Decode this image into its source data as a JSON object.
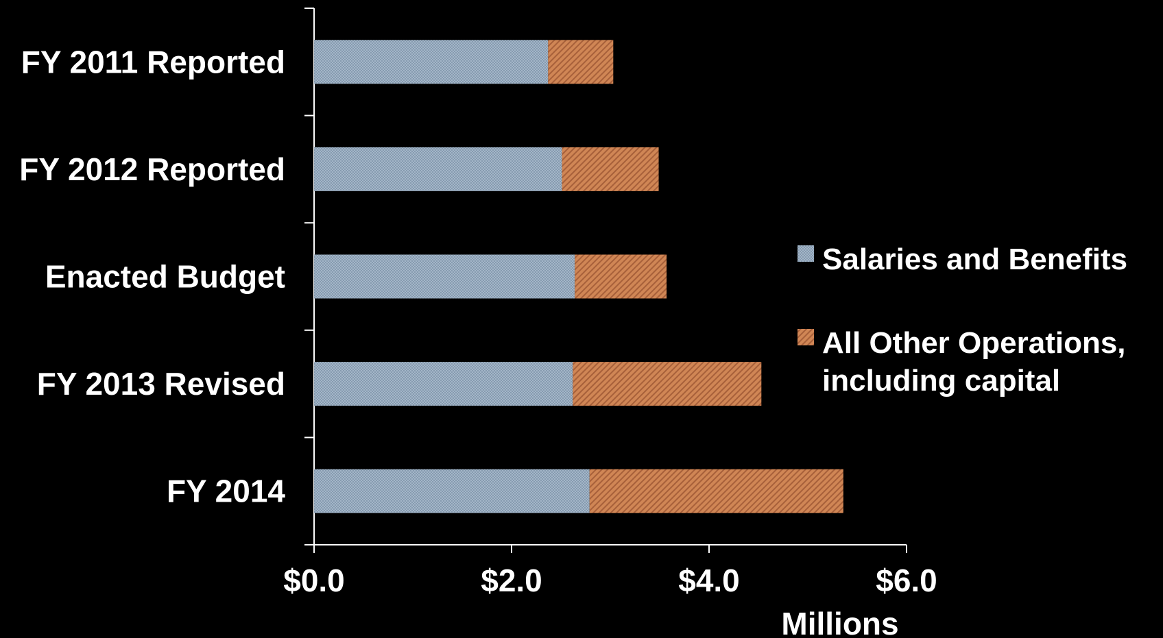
{
  "chart_data": {
    "type": "bar",
    "orientation": "horizontal",
    "stacked": true,
    "categories": [
      "FY 2011 Reported",
      "FY 2012 Reported",
      "Enacted Budget",
      "FY 2013 Revised",
      "FY 2014"
    ],
    "series": [
      {
        "name": "Salaries and Benefits",
        "values": [
          2.37,
          2.51,
          2.64,
          2.62,
          2.79
        ],
        "color": "#95a9bd"
      },
      {
        "name": [
          "All Other Operations,",
          "including capital"
        ],
        "values": [
          0.66,
          0.98,
          0.93,
          1.91,
          2.57
        ],
        "color": "#c67a4e"
      }
    ],
    "xlim": [
      0,
      6
    ],
    "xticks": [
      0,
      2,
      4,
      6
    ],
    "xtick_labels": [
      "$0.0",
      "$2.0",
      "$4.0",
      "$6.0"
    ],
    "xlabel": "Millions",
    "legend_position": "right",
    "grid": false,
    "background": "#000000"
  }
}
